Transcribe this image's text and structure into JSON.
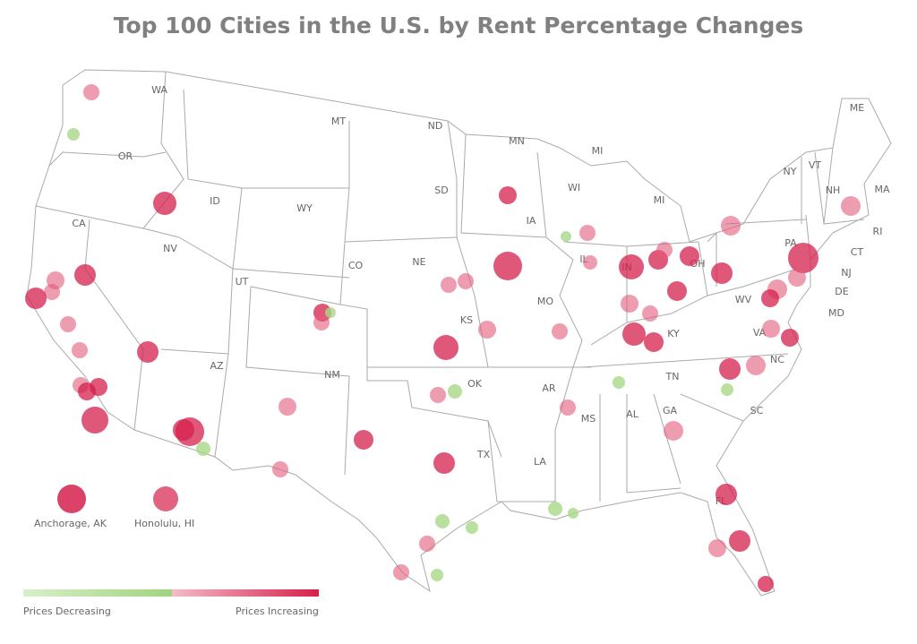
{
  "title": "Top 100 Cities in the U.S. by Rent Percentage Changes",
  "state_labels": [
    "WA",
    "OR",
    "CA",
    "NV",
    "ID",
    "MT",
    "WY",
    "UT",
    "CO",
    "AZ",
    "NM",
    "ND",
    "SD",
    "NE",
    "KS",
    "OK",
    "TX",
    "MN",
    "IA",
    "MO",
    "AR",
    "LA",
    "WI",
    "IL",
    "MI",
    "MI",
    "IN",
    "OH",
    "KY",
    "TN",
    "MS",
    "AL",
    "GA",
    "FL",
    "SC",
    "NC",
    "VA",
    "WV",
    "PA",
    "NY",
    "VT",
    "NH",
    "ME",
    "MA",
    "RI",
    "CT",
    "NJ",
    "DE",
    "MD"
  ],
  "insets": [
    {
      "label": "Anchorage, AK",
      "trend": "increase"
    },
    {
      "label": "Honolulu, HI",
      "trend": "increase"
    }
  ],
  "legend": {
    "low_label": "Prices Decreasing",
    "high_label": "Prices Increasing",
    "colors": {
      "decrease_start": "#d9efc8",
      "decrease_end": "#9fd47f",
      "increase_start": "#f3bcc9",
      "increase_end": "#d6204c"
    }
  },
  "colors": {
    "increase": "#d6204c",
    "increase_light": "#e25a7a",
    "decrease": "#a8d886",
    "border": "#aaaaaa"
  }
}
